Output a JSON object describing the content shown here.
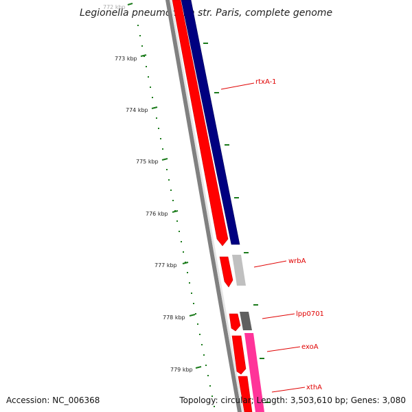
{
  "map": {
    "title": "Legionella pneumophila str. Paris, complete genome",
    "scale_labels": [
      "772 kbp",
      "773 kbp",
      "774 kbp",
      "775 kbp",
      "776 kbp",
      "777 kbp",
      "778 kbp",
      "779 kbp"
    ],
    "genes": [
      "rtxA-1",
      "wrbA",
      "lpp0701",
      "exoA",
      "xthA"
    ]
  },
  "footer": {
    "accession": "Accession: NC_006368",
    "summary": "Topology: circular; Length: 3,503,610 bp; Genes: 3,080"
  },
  "colors": {
    "forward_cds": "#ff0000",
    "reverse_cds": "#000080",
    "backbone": "#808080",
    "pseudogene": "#c0c0c0",
    "other_feature": "#606060",
    "rna": "#ff3399",
    "tick": "#1a7a1a",
    "label": "#e00000"
  }
}
